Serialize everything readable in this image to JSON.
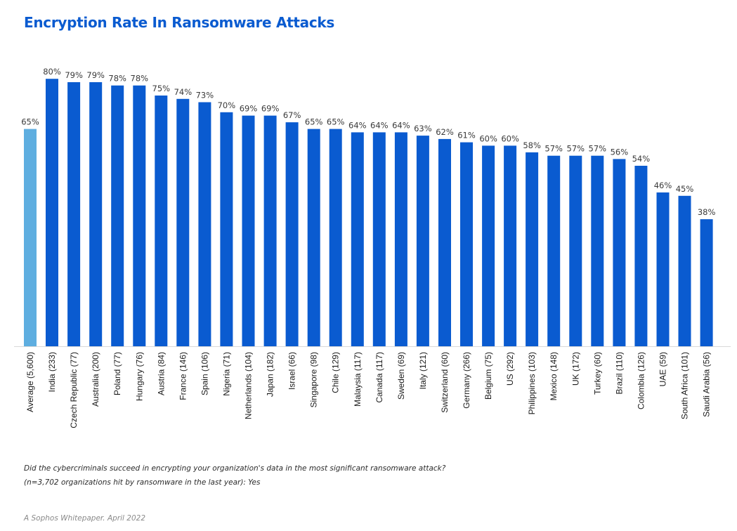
{
  "chart_data": {
    "type": "bar",
    "title": "Encryption Rate In Ransomware Attacks",
    "xlabel": "",
    "ylabel": "",
    "ylim": [
      0,
      100
    ],
    "grid": false,
    "value_suffix": "%",
    "categories": [
      "Average (5,600)",
      "India (233)",
      "Czech Republic (77)",
      "Australia (200)",
      "Poland (77)",
      "Hungary (76)",
      "Austria (84)",
      "France (146)",
      "Spain (106)",
      "Nigeria (71)",
      "Netherlands (104)",
      "Japan (182)",
      "Israel (66)",
      "Singapore (98)",
      "Chile (129)",
      "Malaysia (117)",
      "Canada (117)",
      "Sweden (69)",
      "Italy (121)",
      "Switzerland (60)",
      "Germany (266)",
      "Belgium (75)",
      "US (292)",
      "Philippines (103)",
      "Mexico (148)",
      "UK (172)",
      "Turkey (60)",
      "Brazil (110)",
      "Colombia (126)",
      "UAE (59)",
      "South Africa (101)",
      "Saudi Arabia (56)"
    ],
    "values": [
      65,
      80,
      79,
      79,
      78,
      78,
      75,
      74,
      73,
      70,
      69,
      69,
      67,
      65,
      65,
      64,
      64,
      64,
      63,
      62,
      61,
      60,
      60,
      58,
      57,
      57,
      57,
      56,
      54,
      46,
      45,
      38
    ],
    "colors": {
      "average": "#5eaee0",
      "country": "#0a5bd0",
      "baseline": "#d8d8d8"
    }
  },
  "notes": {
    "question": "Did the cybercriminals succeed in encrypting your organization's data in the most significant ransomware attack?",
    "sample": "(n=3,702 organizations hit by ransomware in the last year): Yes"
  },
  "source": "A Sophos Whitepaper. April 2022"
}
